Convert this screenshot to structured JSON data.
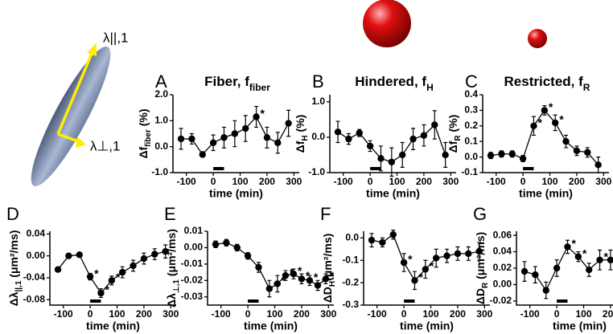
{
  "illustration": {
    "labels": [
      "λ||,1",
      "λ⊥,1"
    ]
  },
  "chart_data": [
    {
      "type": "line",
      "letter": "A",
      "title": {
        "text": "Fiber, f",
        "sub": "fiber"
      },
      "ylabel": {
        "pre": "Δf",
        "sub": "fiber",
        "post": " (%)"
      },
      "xlabel": "time (min)",
      "x": [
        -120,
        -80,
        -40,
        0,
        40,
        80,
        120,
        160,
        200,
        240,
        280
      ],
      "values": [
        0.3,
        0.3,
        -0.3,
        0.15,
        0.35,
        0.5,
        0.7,
        1.15,
        0.35,
        0.15,
        0.9
      ],
      "errors": [
        0.4,
        0.2,
        0.1,
        0.3,
        0.4,
        0.5,
        0.5,
        0.4,
        0.4,
        0.4,
        0.5
      ],
      "flags": [
        null,
        null,
        null,
        null,
        null,
        null,
        null,
        "*",
        null,
        null,
        null
      ],
      "stimulus": [
        0,
        40
      ],
      "xlim": [
        -150,
        320
      ],
      "xticks": [
        -100,
        0,
        100,
        200,
        300
      ],
      "ylim": [
        -1.0,
        2.0
      ],
      "yticks": [
        {
          "value": -1.0,
          "label": "-1.0"
        },
        {
          "value": 0,
          "label": "0.0"
        },
        {
          "value": 1.0,
          "label": "1.0"
        },
        {
          "value": 2.0,
          "label": "2.0"
        }
      ],
      "color": "#000000"
    },
    {
      "type": "line",
      "letter": "B",
      "title": {
        "text": "Hindered, f",
        "sub": "H"
      },
      "ylabel": {
        "pre": "Δf",
        "sub": "H",
        "post": " (%)"
      },
      "xlabel": "time (min)",
      "x": [
        -120,
        -80,
        -40,
        0,
        40,
        80,
        120,
        160,
        200,
        240,
        280
      ],
      "values": [
        0.15,
        -0.05,
        0.12,
        -0.25,
        -0.6,
        -0.7,
        -0.5,
        -0.05,
        0.05,
        0.35,
        -0.5
      ],
      "errors": [
        0.3,
        0.15,
        0.1,
        0.15,
        0.35,
        0.4,
        0.35,
        0.3,
        0.3,
        0.4,
        0.35
      ],
      "flags": [
        null,
        null,
        null,
        null,
        null,
        null,
        null,
        null,
        null,
        null,
        null
      ],
      "stimulus": [
        0,
        40
      ],
      "xlim": [
        -150,
        320
      ],
      "xticks": [
        -100,
        0,
        100,
        200,
        300
      ],
      "ylim": [
        -1.0,
        1.2
      ],
      "yticks": [
        {
          "value": -1.0,
          "label": "-1.0"
        },
        {
          "value": 0,
          "label": "0.0"
        },
        {
          "value": 1.0,
          "label": "1.0"
        }
      ],
      "color": "#000000"
    },
    {
      "type": "line",
      "letter": "C",
      "title": {
        "text": "Restricted, f",
        "sub": "R"
      },
      "ylabel": {
        "pre": "Δf",
        "sub": "R",
        "post": " (%)"
      },
      "xlabel": "time (min)",
      "x": [
        -120,
        -80,
        -40,
        0,
        40,
        80,
        120,
        160,
        200,
        240,
        280
      ],
      "values": [
        0.01,
        0.02,
        0.02,
        -0.01,
        0.2,
        0.3,
        0.22,
        0.1,
        0.04,
        0.03,
        -0.05
      ],
      "errors": [
        0.02,
        0.02,
        0.02,
        0.02,
        0.06,
        0.03,
        0.05,
        0.04,
        0.03,
        0.03,
        0.05
      ],
      "flags": [
        null,
        null,
        null,
        null,
        "*",
        "*",
        "*",
        null,
        null,
        null,
        null
      ],
      "stimulus": [
        0,
        40
      ],
      "xlim": [
        -150,
        320
      ],
      "xticks": [
        -100,
        0,
        100,
        200,
        300
      ],
      "ylim": [
        -0.1,
        0.4
      ],
      "yticks": [
        {
          "value": -0.1,
          "label": "-0.1"
        },
        {
          "value": 0,
          "label": "0.0"
        },
        0.1,
        0.2,
        0.3,
        0.4
      ],
      "color": "#000000"
    },
    {
      "type": "line",
      "letter": "D",
      "ylabel": {
        "pre": "Δλ",
        "sub": "||,1",
        "post": " (μm²/ms)"
      },
      "xlabel": "time (min)",
      "x": [
        -120,
        -80,
        -40,
        0,
        40,
        80,
        120,
        160,
        200,
        240,
        280
      ],
      "values": [
        -0.025,
        0.0,
        0.002,
        -0.038,
        -0.068,
        -0.045,
        -0.03,
        -0.018,
        -0.005,
        0.003,
        0.008
      ],
      "errors": [
        0.004,
        0.004,
        0.004,
        0.006,
        0.008,
        0.008,
        0.01,
        0.01,
        0.01,
        0.01,
        0.012
      ],
      "flags": [
        null,
        null,
        null,
        "*",
        "*",
        "*",
        null,
        null,
        null,
        null,
        null
      ],
      "stimulus": [
        0,
        40
      ],
      "xlim": [
        -150,
        320
      ],
      "xticks": [
        -100,
        0,
        100,
        200,
        300
      ],
      "ylim": [
        -0.09,
        0.045
      ],
      "yticks": [
        {
          "value": -0.08,
          "label": "-0.08"
        },
        {
          "value": -0.04,
          "label": "-0.04"
        },
        {
          "value": 0,
          "label": "0.00"
        },
        0.04
      ],
      "color": "#000000"
    },
    {
      "type": "line",
      "letter": "E",
      "ylabel": {
        "pre": "Δλ",
        "sub": "⊥,1",
        "post": " (μm²/ms)"
      },
      "xlabel": "time (min)",
      "x": [
        -120,
        -80,
        -40,
        0,
        40,
        80,
        110,
        140,
        170,
        200,
        230,
        260,
        290
      ],
      "values": [
        0.002,
        0.003,
        0.0,
        -0.005,
        -0.012,
        -0.025,
        -0.022,
        -0.017,
        -0.016,
        -0.019,
        -0.02,
        -0.023,
        -0.019
      ],
      "errors": [
        0.002,
        0.002,
        0.002,
        0.002,
        0.003,
        0.005,
        0.005,
        0.003,
        0.003,
        0.003,
        0.003,
        0.003,
        0.003
      ],
      "flags": [
        null,
        null,
        null,
        null,
        null,
        "*",
        "*",
        "*",
        "*",
        "*",
        "*",
        "*",
        "*"
      ],
      "stimulus": [
        0,
        40
      ],
      "xlim": [
        -150,
        320
      ],
      "xticks": [
        -100,
        0,
        100,
        200,
        300
      ],
      "ylim": [
        -0.035,
        0.01
      ],
      "yticks": [
        {
          "value": -0.03,
          "label": "-0.03"
        },
        {
          "value": -0.02,
          "label": "-0.02"
        },
        {
          "value": -0.01,
          "label": "-0.01"
        },
        {
          "value": 0,
          "label": "0.00"
        },
        0.01
      ],
      "color": "#000000"
    },
    {
      "type": "line",
      "letter": "F",
      "ylabel": {
        "pre": "ΔD",
        "sub": "H",
        "post": "(μm²/ms)"
      },
      "xlabel": "time (min)",
      "x": [
        -120,
        -80,
        -40,
        0,
        40,
        80,
        120,
        160,
        200,
        240,
        280
      ],
      "values": [
        -0.01,
        -0.02,
        0.015,
        -0.11,
        -0.19,
        -0.14,
        -0.09,
        -0.08,
        -0.07,
        -0.07,
        -0.06
      ],
      "errors": [
        0.03,
        0.02,
        0.02,
        0.04,
        0.04,
        0.04,
        0.04,
        0.03,
        0.03,
        0.03,
        0.04
      ],
      "flags": [
        null,
        null,
        null,
        "*",
        "*",
        "*",
        null,
        null,
        null,
        null,
        null
      ],
      "stimulus": [
        0,
        40
      ],
      "xlim": [
        -150,
        320
      ],
      "xticks": [
        -100,
        0,
        100,
        200,
        300
      ],
      "ylim": [
        -0.3,
        0.03
      ],
      "yticks": [
        {
          "value": -0.3,
          "label": "-0.3"
        },
        {
          "value": -0.2,
          "label": "-0.2"
        },
        {
          "value": -0.1,
          "label": "-0.1"
        },
        {
          "value": 0,
          "label": "0.0"
        }
      ],
      "color": "#000000"
    },
    {
      "type": "line",
      "letter": "G",
      "ylabel": {
        "pre": "ΔD",
        "sub": "R",
        "post": " (μm²/ms)"
      },
      "xlabel": "time (min)",
      "x": [
        -120,
        -80,
        -40,
        0,
        40,
        80,
        120,
        160,
        200,
        240,
        280
      ],
      "values": [
        0.016,
        0.012,
        -0.007,
        0.02,
        0.046,
        0.034,
        0.018,
        0.03,
        0.03,
        0.017,
        0.024
      ],
      "errors": [
        0.012,
        0.01,
        0.01,
        0.01,
        0.008,
        0.006,
        0.008,
        0.012,
        0.012,
        0.008,
        0.01
      ],
      "flags": [
        null,
        null,
        null,
        null,
        "*",
        "*",
        null,
        "*",
        "*",
        null,
        null
      ],
      "stimulus": [
        0,
        40
      ],
      "xlim": [
        -150,
        320
      ],
      "xticks": [
        -100,
        0,
        100,
        200,
        300
      ],
      "ylim": [
        -0.025,
        0.065
      ],
      "yticks": [
        {
          "value": -0.02,
          "label": "-0.02"
        },
        {
          "value": 0,
          "label": "0.00"
        },
        0.02,
        0.04,
        0.06
      ],
      "color": "#000000"
    }
  ]
}
